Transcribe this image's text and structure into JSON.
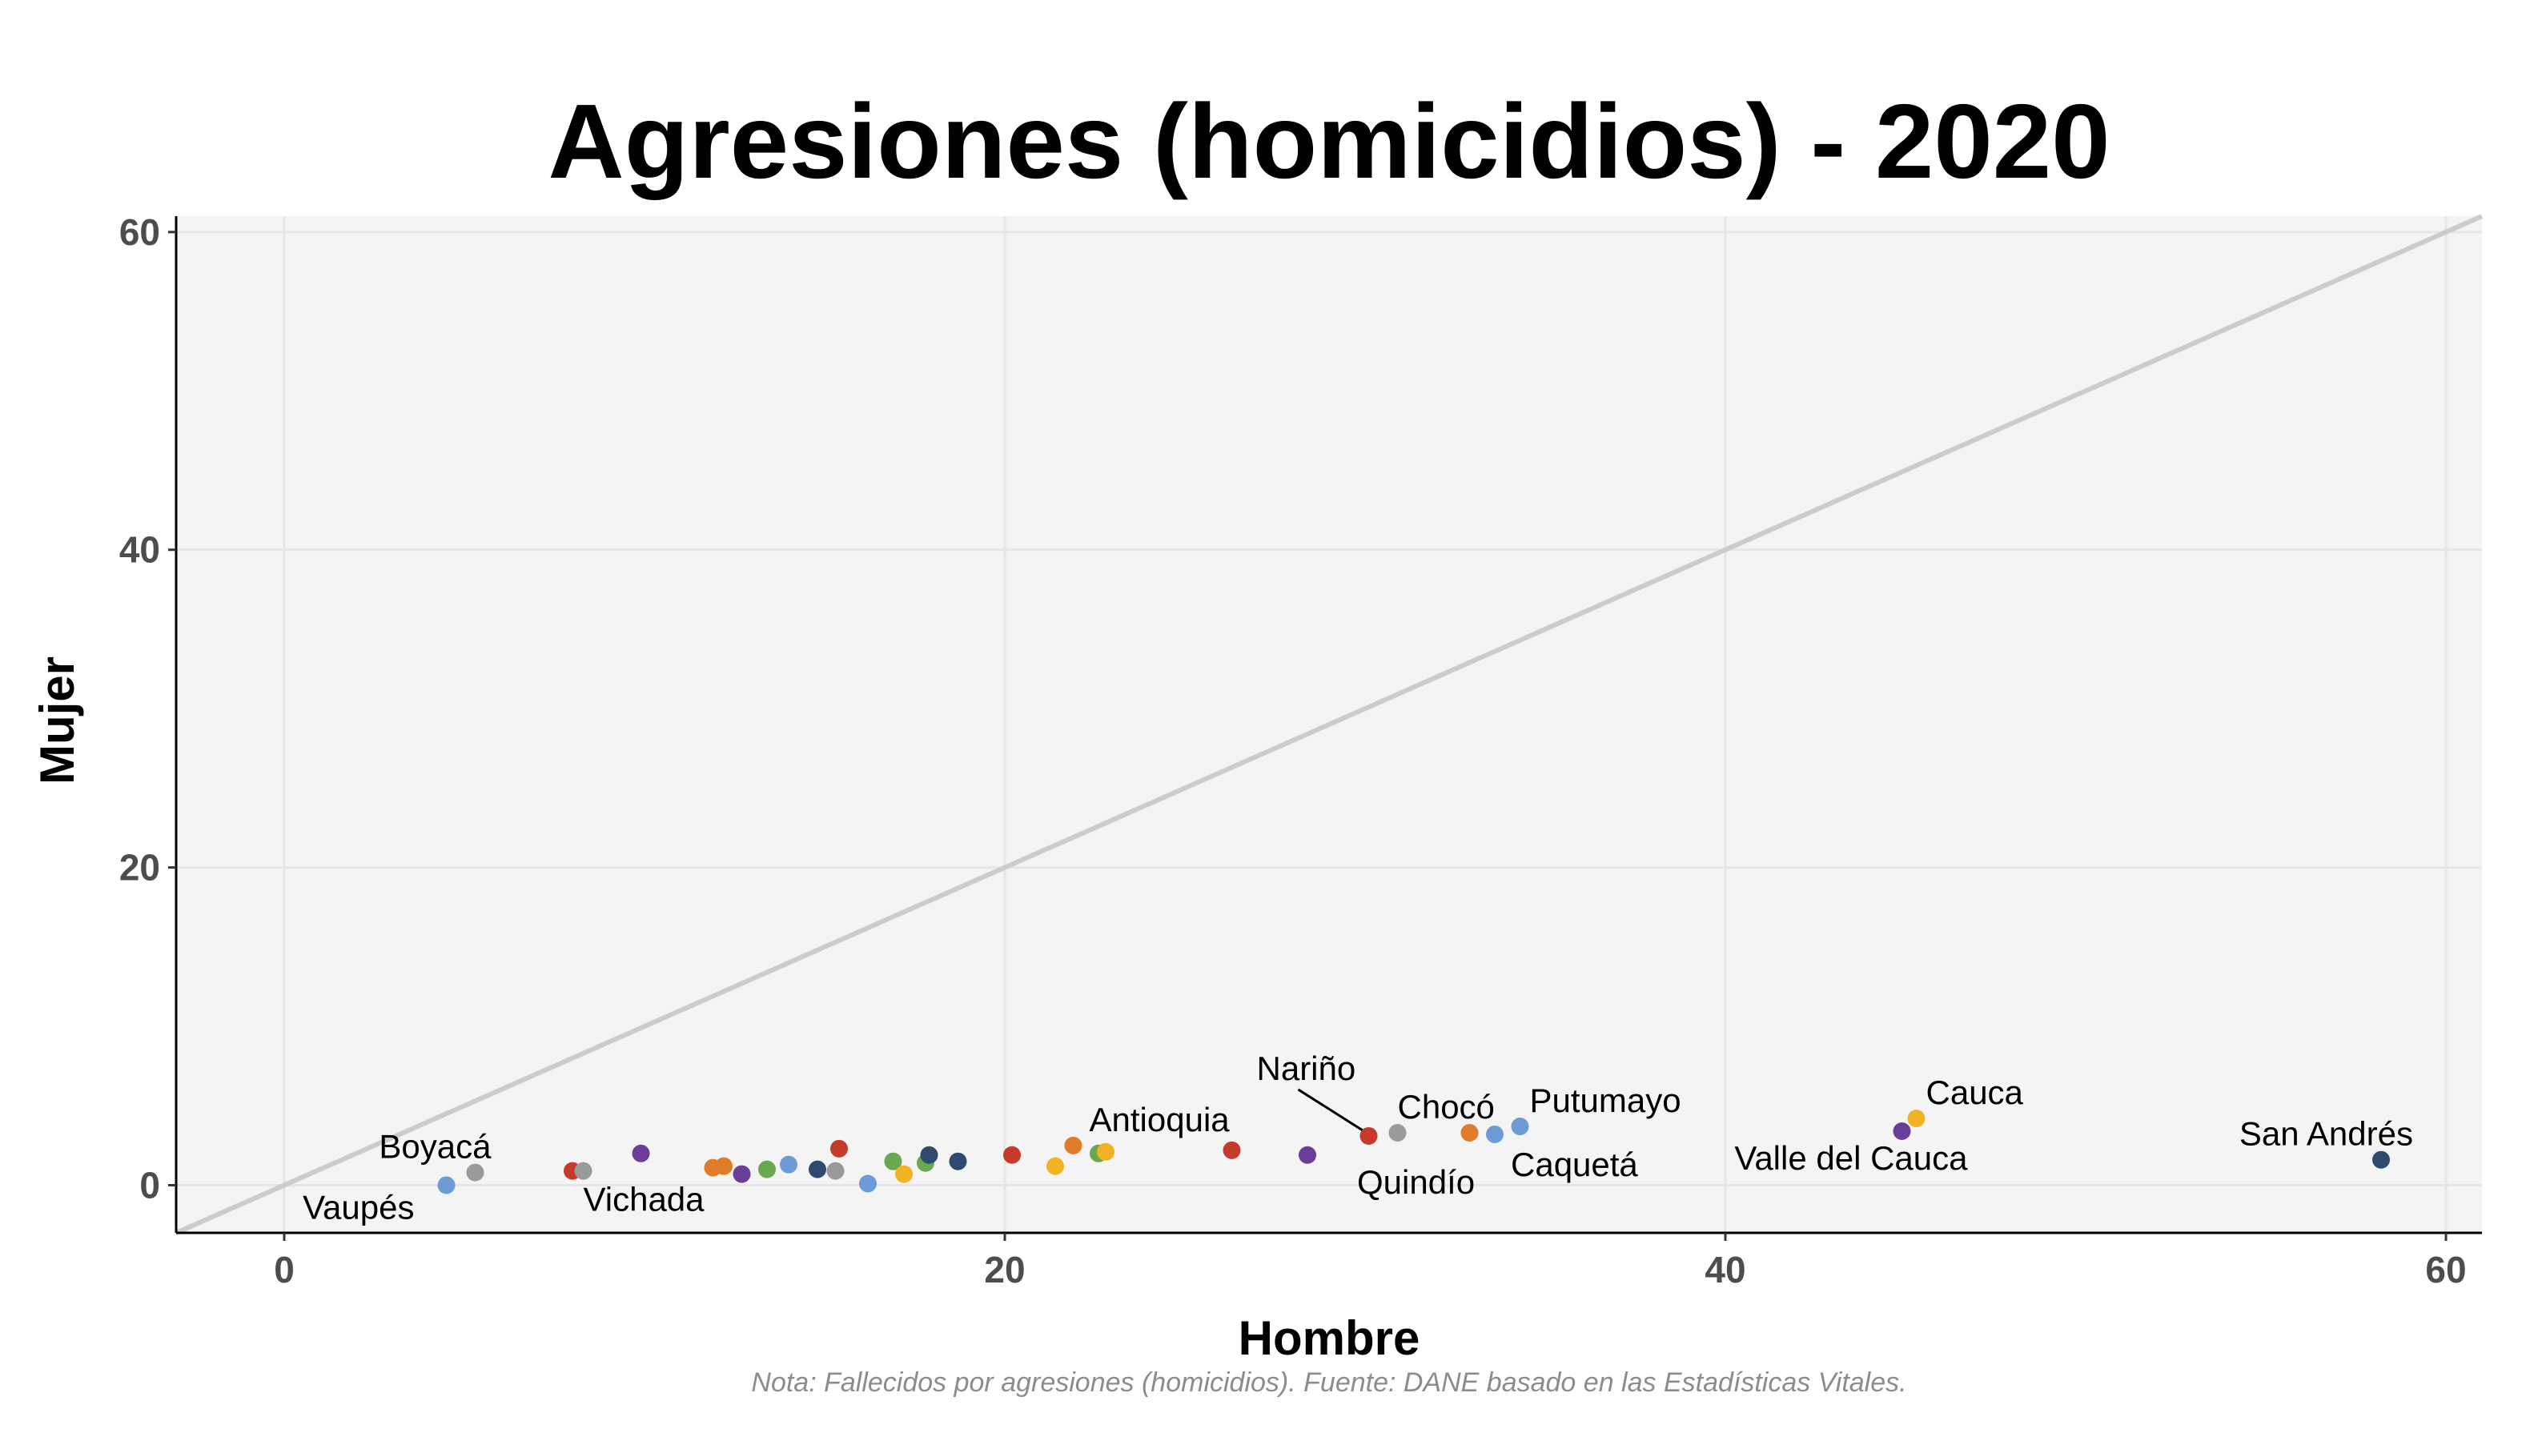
{
  "chart_data": {
    "type": "scatter",
    "title": "Agresiones (homicidios) - 2020",
    "xlabel": "Hombre",
    "ylabel": "Mujer",
    "xlim": [
      -3,
      61
    ],
    "ylim": [
      -3,
      61
    ],
    "xticks": [
      "0",
      "20",
      "40",
      "60"
    ],
    "yticks": [
      "0",
      "20",
      "40",
      "60"
    ],
    "grid": true,
    "reference_line": "y = x",
    "note": "Nota: Fallecidos por agresiones (homicidios). Fuente: DANE basado en las Estadísticas Vitales.",
    "colors": {
      "panel": "#f4f4f4",
      "grid": "#e6e6e6",
      "reference_line": "#cccccc",
      "leader": "#000000"
    },
    "points": [
      {
        "x": 4.5,
        "y": 0.0,
        "color": "#6e9bd6",
        "label": "Vaupés"
      },
      {
        "x": 5.3,
        "y": 0.8,
        "color": "#9a9a9a",
        "label": "Boyacá"
      },
      {
        "x": 8.0,
        "y": 0.9,
        "color": "#c53a2b"
      },
      {
        "x": 8.3,
        "y": 0.9,
        "color": "#9a9a9a",
        "label": "Vichada"
      },
      {
        "x": 9.9,
        "y": 2.0,
        "color": "#6a3d96"
      },
      {
        "x": 11.9,
        "y": 1.1,
        "color": "#e07b2a"
      },
      {
        "x": 12.2,
        "y": 1.2,
        "color": "#e07b2a"
      },
      {
        "x": 12.7,
        "y": 0.7,
        "color": "#6a3d96"
      },
      {
        "x": 13.4,
        "y": 1.0,
        "color": "#6aa84f"
      },
      {
        "x": 14.0,
        "y": 1.3,
        "color": "#6e9bd6"
      },
      {
        "x": 14.8,
        "y": 1.0,
        "color": "#2f4a6e"
      },
      {
        "x": 15.3,
        "y": 0.9,
        "color": "#9a9a9a"
      },
      {
        "x": 15.4,
        "y": 2.3,
        "color": "#c53a2b"
      },
      {
        "x": 16.2,
        "y": 0.1,
        "color": "#6e9bd6"
      },
      {
        "x": 16.9,
        "y": 1.5,
        "color": "#6aa84f"
      },
      {
        "x": 17.2,
        "y": 0.7,
        "color": "#f0b323"
      },
      {
        "x": 17.8,
        "y": 1.4,
        "color": "#6aa84f"
      },
      {
        "x": 17.9,
        "y": 1.9,
        "color": "#2f4a6e"
      },
      {
        "x": 18.7,
        "y": 1.5,
        "color": "#2f4a6e"
      },
      {
        "x": 20.2,
        "y": 1.9,
        "color": "#c53a2b"
      },
      {
        "x": 21.4,
        "y": 1.2,
        "color": "#f0b323"
      },
      {
        "x": 21.9,
        "y": 2.5,
        "color": "#e07b2a",
        "label": "Antioquia"
      },
      {
        "x": 22.6,
        "y": 2.0,
        "color": "#6aa84f"
      },
      {
        "x": 22.8,
        "y": 2.1,
        "color": "#f0b323"
      },
      {
        "x": 26.3,
        "y": 2.2,
        "color": "#c53a2b"
      },
      {
        "x": 28.4,
        "y": 1.9,
        "color": "#6a3d96",
        "label": "Quindío"
      },
      {
        "x": 30.1,
        "y": 3.1,
        "color": "#c53a2b",
        "label": "Nariño"
      },
      {
        "x": 30.9,
        "y": 3.3,
        "color": "#9a9a9a",
        "label": "Chocó"
      },
      {
        "x": 32.9,
        "y": 3.3,
        "color": "#e07b2a"
      },
      {
        "x": 33.6,
        "y": 3.2,
        "color": "#6e9bd6",
        "label": "Caquetá"
      },
      {
        "x": 34.3,
        "y": 3.7,
        "color": "#6e9bd6",
        "label": "Putumayo"
      },
      {
        "x": 44.9,
        "y": 3.4,
        "color": "#6a3d96",
        "label": "Valle del Cauca"
      },
      {
        "x": 45.3,
        "y": 4.2,
        "color": "#f0b323",
        "label": "Cauca"
      },
      {
        "x": 58.2,
        "y": 1.6,
        "color": "#2f4a6e",
        "label": "San Andrés"
      }
    ]
  }
}
